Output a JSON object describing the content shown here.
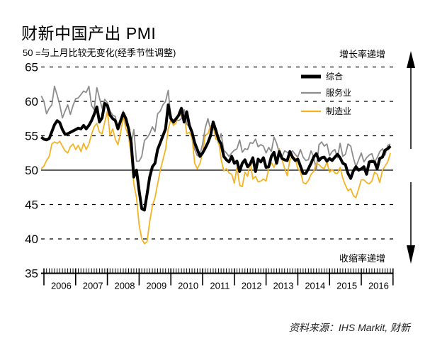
{
  "header": {
    "title": "财新中国产出 PMI",
    "subtitle": "50 =与上月比较无变化(经季节性调整)"
  },
  "annotations": {
    "up_label": "增长率递增",
    "down_label": "收缩率递增"
  },
  "source": "资料来源：IHS Markit, 财新",
  "colors": {
    "composite": "#000000",
    "services": "#8c8c8c",
    "manufacturing": "#f5b324"
  },
  "chart_data": {
    "type": "line",
    "title": "财新中国产出 PMI",
    "subtitle": "50 =与上月比较无变化(经季节性调整)",
    "xlabel": "",
    "ylabel": "",
    "ylim": [
      35,
      65
    ],
    "yticks": [
      "35",
      "40",
      "45",
      "50",
      "55",
      "60",
      "65"
    ],
    "xticks": [
      "2006",
      "2007",
      "2008",
      "2009",
      "2010",
      "2011",
      "2012",
      "2013",
      "2014",
      "2015",
      "2016"
    ],
    "grid": "dashed horizontal at 40, 45, 55, 60, 65; solid reference line at 50",
    "legend": {
      "position": "top-right",
      "entries": [
        "综合",
        "服务业",
        "制造业"
      ]
    },
    "x_start": "2005-12",
    "x_step": "month",
    "series": [
      {
        "name": "综合",
        "values": [
          54.8,
          54.5,
          54.4,
          54.6,
          55.6,
          56.6,
          57.2,
          56.9,
          55.9,
          55.2,
          55.3,
          55.5,
          55.7,
          55.9,
          56.1,
          56.0,
          56.5,
          56.0,
          56.5,
          57.2,
          58.1,
          59.2,
          57.0,
          57.6,
          59.7,
          59.4,
          58.0,
          57.5,
          57.2,
          56.0,
          57.2,
          58.3,
          57.5,
          56.0,
          54.0,
          49.0,
          50.0,
          47.0,
          44.4,
          44.2,
          46.5,
          49.0,
          50.5,
          51.0,
          53.0,
          54.0,
          55.0,
          56.0,
          59.5,
          57.5,
          57.0,
          57.5,
          58.0,
          59.0,
          57.0,
          58.5,
          56.5,
          55.5,
          54.0,
          53.0,
          52.0,
          52.5,
          53.2,
          54.0,
          55.0,
          57.0,
          55.8,
          54.5,
          53.8,
          52.0,
          51.5,
          51.2,
          52.0,
          51.0,
          51.3,
          49.8,
          51.0,
          51.5,
          50.5,
          50.9,
          51.8,
          49.8,
          51.6,
          51.2,
          51.8,
          50.4,
          50.5,
          52.0,
          52.6,
          51.0,
          52.7,
          51.7,
          51.5,
          51.4,
          52.7,
          51.9,
          51.4,
          51.6,
          50.6,
          49.5,
          49.5,
          50.2,
          51.0,
          51.9,
          52.4,
          51.4,
          51.8,
          51.9,
          51.3,
          51.7,
          51.4,
          51.9,
          52.3,
          51.8,
          51.0,
          50.8,
          49.5,
          48.8,
          49.9,
          50.5,
          50.0,
          50.2,
          50.5,
          49.4,
          51.2,
          51.3,
          51.2,
          50.2,
          51.7,
          51.9,
          52.9,
          53.1,
          53.5
        ]
      },
      {
        "name": "服务业",
        "values": [
          60.8,
          60.0,
          58.2,
          59.0,
          59.5,
          62.2,
          60.9,
          59.5,
          57.6,
          58.6,
          59.5,
          58.1,
          59.4,
          60.4,
          60.5,
          61.0,
          61.5,
          61.3,
          62.2,
          59.4,
          58.8,
          62.0,
          60.5,
          59.0,
          60.3,
          59.8,
          58.6,
          58.0,
          57.8,
          55.9,
          57.0,
          58.6,
          56.5,
          56.3,
          53.8,
          55.9,
          51.3,
          51.3,
          52.0,
          54.3,
          54.7,
          55.3,
          56.3,
          55.6,
          58.2,
          58.6,
          59.5,
          60.0,
          61.6,
          57.5,
          56.8,
          57.3,
          57.2,
          57.5,
          58.8,
          56.7,
          56.3,
          55.4,
          53.0,
          52.1,
          52.3,
          53.8,
          56.1,
          57.5,
          55.9,
          56.0,
          55.5,
          53.9,
          55.3,
          52.9,
          52.5,
          52.0,
          52.5,
          52.9,
          53.1,
          54.4,
          52.6,
          53.1,
          53.0,
          54.0,
          53.9,
          54.5,
          53.4,
          53.7,
          53.5,
          52.5,
          53.3,
          52.7,
          54.8,
          53.9,
          52.5,
          51.9,
          52.8,
          52.6,
          52.3,
          52.8,
          52.3,
          51.9,
          53.0,
          51.9,
          51.4,
          51.5,
          52.8,
          51.9,
          50.0,
          53.7,
          54.1,
          53.5,
          53.8,
          52.1,
          52.7,
          53.0,
          51.8,
          53.9,
          52.0,
          52.3,
          53.8,
          53.5,
          51.8,
          50.5,
          51.5,
          52.5,
          51.2,
          51.8,
          52.2,
          52.4,
          51.2,
          51.8,
          52.7,
          53.1,
          52.2,
          53.6,
          53.8
        ]
      },
      {
        "name": "制造业",
        "values": [
          50.2,
          50.6,
          51.4,
          52.0,
          53.8,
          54.1,
          53.9,
          54.2,
          53.5,
          52.8,
          52.5,
          53.4,
          53.8,
          53.0,
          53.6,
          52.7,
          53.9,
          53.0,
          53.8,
          55.2,
          56.3,
          56.8,
          55.5,
          55.3,
          57.0,
          58.6,
          55.0,
          56.0,
          54.5,
          53.7,
          55.5,
          57.8,
          56.0,
          55.0,
          52.0,
          48.0,
          46.0,
          42.0,
          40.0,
          39.3,
          39.6,
          42.5,
          44.8,
          46.0,
          48.0,
          50.0,
          51.5,
          53.0,
          56.0,
          57.4,
          56.5,
          56.9,
          58.5,
          57.8,
          58.0,
          55.3,
          55.5,
          54.7,
          51.0,
          50.2,
          51.0,
          52.5,
          55.1,
          55.3,
          56.4,
          56.7,
          54.5,
          54.4,
          51.6,
          49.9,
          50.2,
          49.6,
          49.4,
          48.1,
          50.4,
          47.8,
          47.6,
          49.7,
          49.1,
          51.2,
          48.7,
          49.1,
          48.3,
          48.4,
          48.7,
          48.4,
          50.3,
          51.1,
          50.4,
          51.5,
          53.1,
          51.6,
          50.3,
          49.2,
          51.5,
          52.0,
          51.7,
          50.2,
          49.8,
          48.2,
          48.0,
          48.5,
          49.4,
          49.8,
          51.0,
          50.8,
          50.4,
          50.2,
          51.2,
          49.7,
          50.1,
          49.6,
          49.5,
          50.4,
          48.8,
          47.8,
          47.0,
          47.3,
          46.3,
          46.0,
          47.3,
          48.6,
          48.6,
          48.2,
          48.0,
          48.4,
          49.7,
          49.4,
          48.2,
          50.0,
          50.6,
          51.2,
          52.5
        ]
      }
    ]
  }
}
